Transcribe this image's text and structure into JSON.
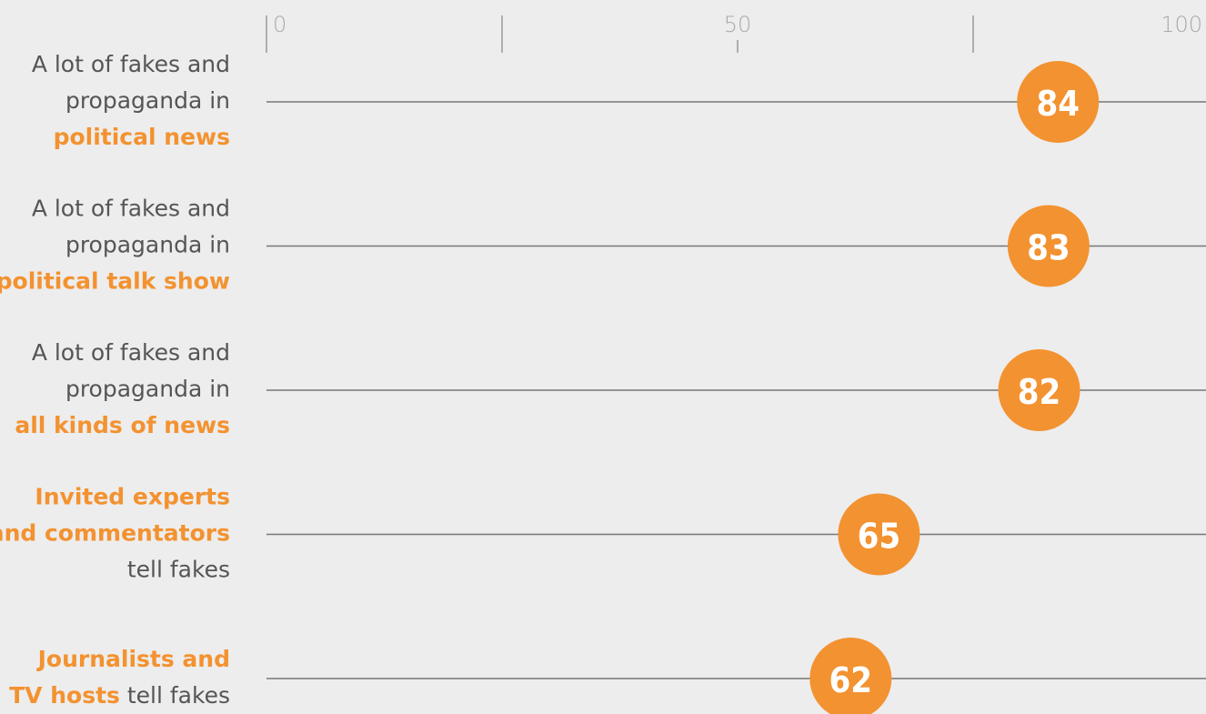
{
  "chart_data": {
    "type": "dot",
    "categories": [
      [
        [
          {
            "text": "A lot of fakes and"
          }
        ],
        [
          {
            "text": "propaganda in"
          }
        ],
        [
          {
            "text": "political news",
            "highlight": true
          }
        ]
      ],
      [
        [
          {
            "text": "A lot of fakes and"
          }
        ],
        [
          {
            "text": "propaganda in"
          }
        ],
        [
          {
            "text": "political talk show",
            "highlight": true
          }
        ]
      ],
      [
        [
          {
            "text": "A lot of fakes and"
          }
        ],
        [
          {
            "text": "propaganda in"
          }
        ],
        [
          {
            "text": "all kinds of news",
            "highlight": true
          }
        ]
      ],
      [
        [
          {
            "text": "Invited experts",
            "highlight": true
          }
        ],
        [
          {
            "text": "and commentators",
            "highlight": true
          }
        ],
        [
          {
            "text": "tell fakes"
          }
        ]
      ],
      [
        [
          {
            "text": "Journalists and",
            "highlight": true
          }
        ],
        [
          {
            "text": "TV hosts",
            "highlight": true
          },
          {
            "text": " tell fakes"
          }
        ]
      ]
    ],
    "values": [
      84,
      83,
      82,
      65,
      62
    ],
    "color": "#f39230",
    "highlight_color": "#f39230",
    "xlim": [
      0,
      100
    ],
    "xticks": [
      0,
      50,
      100
    ],
    "minor_xticks": [
      25,
      75
    ]
  }
}
